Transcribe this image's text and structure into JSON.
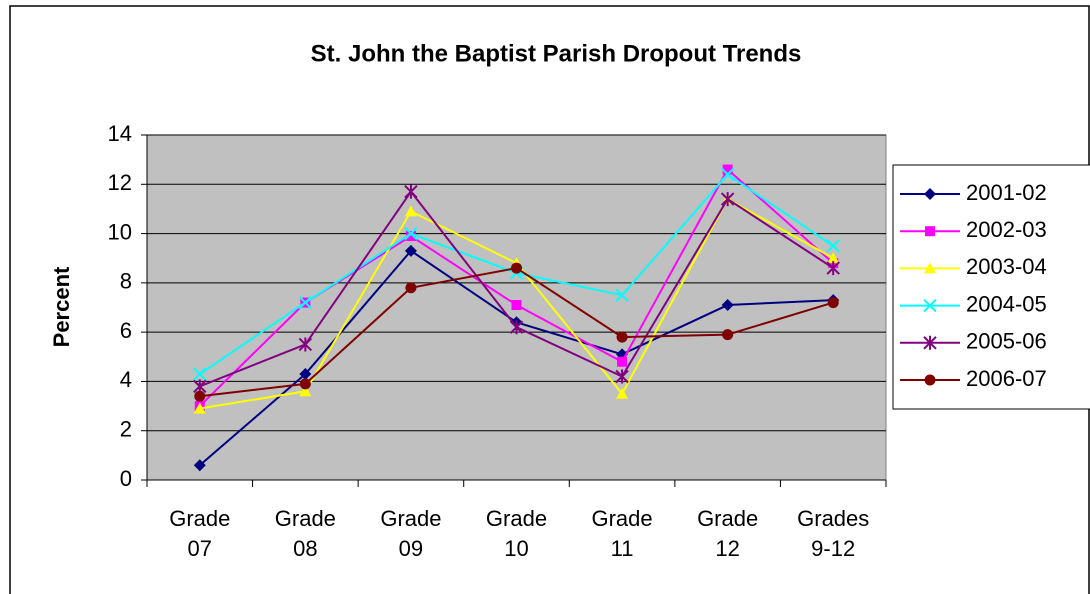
{
  "chart_data": {
    "type": "line",
    "title": "St. John the Baptist Parish Dropout Trends",
    "y_label": "Percent",
    "categories": [
      "Grade 07",
      "Grade 08",
      "Grade 09",
      "Grade 10",
      "Grade 11",
      "Grade 12",
      "Grades 9-12"
    ],
    "series": [
      {
        "name": "2001-02",
        "color": "#000080",
        "marker": "diamond",
        "values": [
          0.6,
          4.3,
          9.3,
          6.4,
          5.1,
          7.1,
          7.3
        ]
      },
      {
        "name": "2002-03",
        "color": "#ff00ff",
        "marker": "square",
        "values": [
          3.0,
          7.2,
          9.9,
          7.1,
          4.8,
          12.6,
          8.8
        ]
      },
      {
        "name": "2003-04",
        "color": "#ffff00",
        "marker": "triangle",
        "values": [
          2.9,
          3.6,
          10.9,
          8.8,
          3.5,
          11.4,
          9.0
        ]
      },
      {
        "name": "2004-05",
        "color": "#00ffff",
        "marker": "x",
        "values": [
          4.3,
          7.2,
          10.0,
          8.4,
          7.5,
          12.4,
          9.5
        ]
      },
      {
        "name": "2005-06",
        "color": "#800080",
        "marker": "star",
        "values": [
          3.8,
          5.5,
          11.7,
          6.2,
          4.2,
          11.4,
          8.6
        ]
      },
      {
        "name": "2006-07",
        "color": "#800000",
        "marker": "circle",
        "values": [
          3.4,
          3.9,
          7.8,
          8.6,
          5.8,
          5.9,
          7.2
        ]
      }
    ],
    "ylim": [
      0,
      14
    ],
    "yticks": [
      0,
      2,
      4,
      6,
      8,
      10,
      12,
      14
    ],
    "grid": true,
    "legend": "right"
  }
}
